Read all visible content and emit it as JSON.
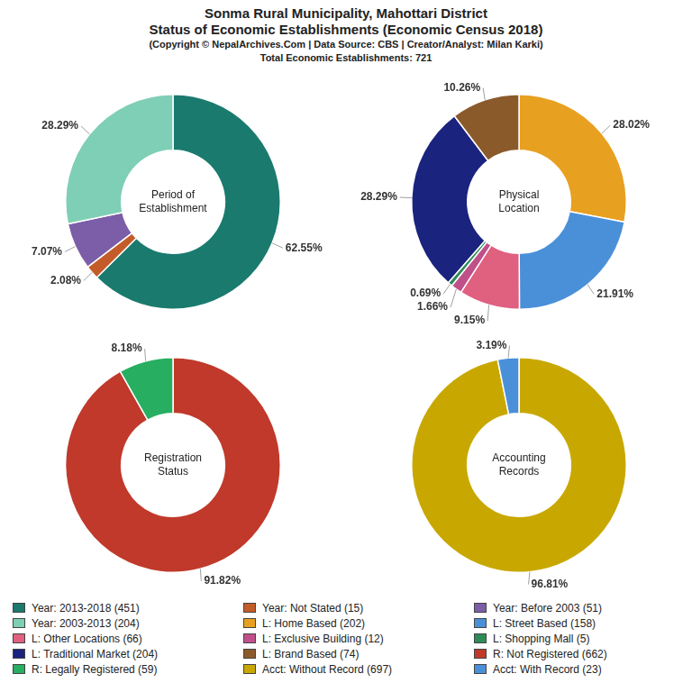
{
  "title": [
    "Sonma Rural Municipality, Mahottari District",
    "Status of Economic Establishments (Economic Census 2018)"
  ],
  "subtitle": [
    "(Copyright © NepalArchives.Com | Data Source: CBS | Creator/Analyst: Milan Karki)",
    "Total Economic Establishments: 721"
  ],
  "legend": "bottom",
  "chart_data": [
    {
      "type": "doughnut",
      "title": "Period of\nEstablishment",
      "categories": [
        "Year: 2013-2018 (451)",
        "Year: Not Stated (15)",
        "Year: Before 2003 (51)",
        "Year: 2003-2013 (204)"
      ],
      "values": [
        62.55,
        2.08,
        7.07,
        28.29
      ],
      "value_labels": [
        "62.55%",
        "2.08%",
        "7.07%",
        "28.29%"
      ],
      "colors": [
        "#1a7a6e",
        "#c45c2a",
        "#7b5ea7",
        "#7ecfb5"
      ],
      "data_labels": true
    },
    {
      "type": "doughnut",
      "title": "Physical\nLocation",
      "categories": [
        "L: Home Based (202)",
        "L: Street Based (158)",
        "L: Other Locations (66)",
        "L: Exclusive Building (12)",
        "L: Shopping Mall (5)",
        "L: Traditional Market (204)",
        "L: Brand Based (74)"
      ],
      "values": [
        28.02,
        21.91,
        9.15,
        1.66,
        0.69,
        28.29,
        10.26
      ],
      "value_labels": [
        "28.02%",
        "21.91%",
        "9.15%",
        "1.66%",
        "0.69%",
        "28.29%",
        "10.26%"
      ],
      "colors": [
        "#e8a020",
        "#4a90d9",
        "#e06080",
        "#c0508a",
        "#2e8b57",
        "#1a237e",
        "#8b5a2b"
      ],
      "data_labels": true
    },
    {
      "type": "doughnut",
      "title": "Registration\nStatus",
      "categories": [
        "R: Not Registered (662)",
        "R: Legally Registered (59)"
      ],
      "values": [
        91.82,
        8.18
      ],
      "value_labels": [
        "91.82%",
        "8.18%"
      ],
      "colors": [
        "#c0392b",
        "#27ae60"
      ],
      "data_labels": true
    },
    {
      "type": "doughnut",
      "title": "Accounting\nRecords",
      "categories": [
        "Acct: Without Record (697)",
        "Acct: With Record (23)"
      ],
      "values": [
        96.81,
        3.19
      ],
      "value_labels": [
        "96.81%",
        "3.19%"
      ],
      "colors": [
        "#c8a800",
        "#4a90d9"
      ],
      "data_labels": true
    }
  ]
}
